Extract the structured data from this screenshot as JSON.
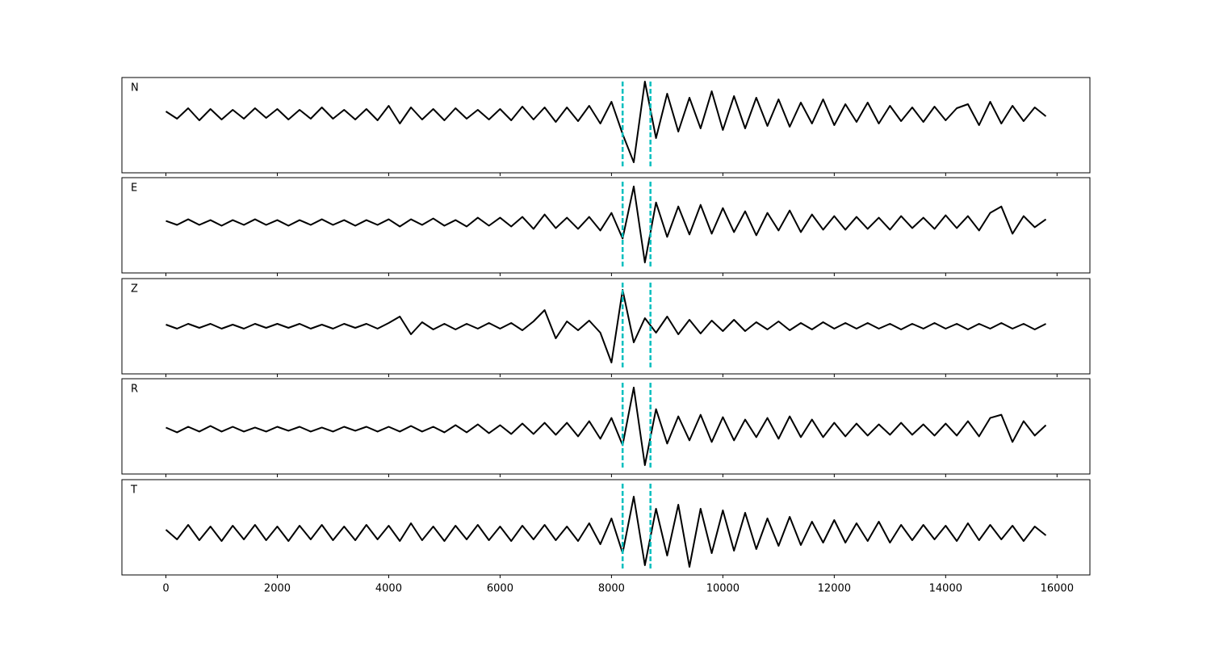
{
  "chart_data": [
    {
      "type": "line",
      "name": "N",
      "color": "#000000",
      "vline_color": "#00bfbf",
      "vlines": [
        8200,
        8700
      ],
      "x": [
        0,
        200,
        400,
        600,
        800,
        1000,
        1200,
        1400,
        1600,
        1800,
        2000,
        2200,
        2400,
        2600,
        2800,
        3000,
        3200,
        3400,
        3600,
        3800,
        4000,
        4200,
        4400,
        4600,
        4800,
        5000,
        5200,
        5400,
        5600,
        5800,
        6000,
        6200,
        6400,
        6600,
        6800,
        7000,
        7200,
        7400,
        7600,
        7800,
        8000,
        8200,
        8400,
        8600,
        8800,
        9000,
        9200,
        9400,
        9600,
        9800,
        10000,
        10200,
        10400,
        10600,
        10800,
        11000,
        11200,
        11400,
        11600,
        11800,
        12000,
        12200,
        12400,
        12600,
        12800,
        13000,
        13200,
        13400,
        13600,
        13800,
        14000,
        14200,
        14400,
        14600,
        14800,
        15000,
        15200,
        15400,
        15600,
        15800
      ],
      "values": [
        3,
        -6,
        7,
        -8,
        6,
        -7,
        5,
        -6,
        7,
        -5,
        6,
        -7,
        5,
        -6,
        8,
        -6,
        5,
        -7,
        6,
        -8,
        10,
        -12,
        8,
        -7,
        6,
        -8,
        7,
        -6,
        5,
        -7,
        6,
        -8,
        9,
        -7,
        8,
        -10,
        8,
        -9,
        10,
        -12,
        15,
        -25,
        -60,
        40,
        -30,
        25,
        -22,
        20,
        -18,
        28,
        -20,
        22,
        -18,
        20,
        -15,
        18,
        -16,
        14,
        -12,
        18,
        -14,
        12,
        -10,
        14,
        -12,
        10,
        -9,
        8,
        -10,
        9,
        -8,
        7,
        12,
        -14,
        15,
        -12,
        10,
        -9,
        8,
        -3
      ],
      "xlim": [
        -790,
        16590
      ],
      "ylim": [
        -73,
        45
      ],
      "xticks": [
        0,
        2000,
        4000,
        6000,
        8000,
        10000,
        12000,
        14000,
        16000
      ]
    },
    {
      "type": "line",
      "name": "E",
      "color": "#000000",
      "vline_color": "#00bfbf",
      "vlines": [
        8200,
        8700
      ],
      "x": [
        0,
        200,
        400,
        600,
        800,
        1000,
        1200,
        1400,
        1600,
        1800,
        2000,
        2200,
        2400,
        2600,
        2800,
        3000,
        3200,
        3400,
        3600,
        3800,
        4000,
        4200,
        4400,
        4600,
        4800,
        5000,
        5200,
        5400,
        5600,
        5800,
        6000,
        6200,
        6400,
        6600,
        6800,
        7000,
        7200,
        7400,
        7600,
        7800,
        8000,
        8200,
        8400,
        8600,
        8800,
        9000,
        9200,
        9400,
        9600,
        9800,
        10000,
        10200,
        10400,
        10600,
        10800,
        11000,
        11200,
        11400,
        11600,
        11800,
        12000,
        12200,
        12400,
        12600,
        12800,
        13000,
        13200,
        13400,
        13600,
        13800,
        14000,
        14200,
        14400,
        14600,
        14800,
        15000,
        15200,
        15400,
        15600,
        15800
      ],
      "values": [
        2,
        -3,
        4,
        -3,
        3,
        -4,
        3,
        -3,
        4,
        -3,
        3,
        -4,
        3,
        -3,
        4,
        -3,
        3,
        -4,
        3,
        -3,
        4,
        -5,
        4,
        -3,
        5,
        -4,
        3,
        -5,
        6,
        -4,
        6,
        -5,
        7,
        -8,
        10,
        -7,
        6,
        -8,
        7,
        -10,
        12,
        -20,
        45,
        -50,
        25,
        -18,
        20,
        -15,
        22,
        -14,
        18,
        -12,
        14,
        -16,
        12,
        -10,
        15,
        -12,
        10,
        -9,
        8,
        -9,
        7,
        -8,
        6,
        -9,
        8,
        -7,
        6,
        -8,
        9,
        -7,
        8,
        -10,
        12,
        20,
        -14,
        8,
        -6,
        4
      ],
      "xlim": [
        -790,
        16590
      ],
      "ylim": [
        -63,
        56
      ],
      "xticks": [
        0,
        2000,
        4000,
        6000,
        8000,
        10000,
        12000,
        14000,
        16000
      ]
    },
    {
      "type": "line",
      "name": "Z",
      "color": "#000000",
      "vline_color": "#00bfbf",
      "vlines": [
        8200,
        8700
      ],
      "x": [
        0,
        200,
        400,
        600,
        800,
        1000,
        1200,
        1400,
        1600,
        1800,
        2000,
        2200,
        2400,
        2600,
        2800,
        3000,
        3200,
        3400,
        3600,
        3800,
        4000,
        4200,
        4400,
        4600,
        4800,
        5000,
        5200,
        5400,
        5600,
        5800,
        6000,
        6200,
        6400,
        6600,
        6800,
        7000,
        7200,
        7400,
        7600,
        7800,
        8000,
        8200,
        8400,
        8600,
        8800,
        9000,
        9200,
        9400,
        9600,
        9800,
        10000,
        10200,
        10400,
        10600,
        10800,
        11000,
        11200,
        11400,
        11600,
        11800,
        12000,
        12200,
        12400,
        12600,
        12800,
        13000,
        13200,
        13400,
        13600,
        13800,
        14000,
        14200,
        14400,
        14600,
        14800,
        15000,
        15200,
        15400,
        15600,
        15800
      ],
      "values": [
        2,
        -3,
        3,
        -2,
        3,
        -3,
        2,
        -3,
        3,
        -2,
        3,
        -2,
        3,
        -3,
        2,
        -3,
        3,
        -2,
        3,
        -3,
        4,
        12,
        -10,
        5,
        -4,
        3,
        -4,
        3,
        -3,
        4,
        -3,
        4,
        -5,
        6,
        20,
        -15,
        6,
        -5,
        7,
        -8,
        -45,
        45,
        -20,
        10,
        -8,
        12,
        -10,
        8,
        -9,
        7,
        -6,
        8,
        -6,
        5,
        -4,
        6,
        -5,
        4,
        -4,
        5,
        -3,
        4,
        -3,
        4,
        -3,
        3,
        -4,
        3,
        -3,
        4,
        -3,
        3,
        -4,
        3,
        -3,
        4,
        -3,
        3,
        -4,
        3
      ],
      "xlim": [
        -790,
        16590
      ],
      "ylim": [
        -59,
        59
      ],
      "xticks": [
        0,
        2000,
        4000,
        6000,
        8000,
        10000,
        12000,
        14000,
        16000
      ]
    },
    {
      "type": "line",
      "name": "R",
      "color": "#000000",
      "vline_color": "#00bfbf",
      "vlines": [
        8200,
        8700
      ],
      "x": [
        0,
        200,
        400,
        600,
        800,
        1000,
        1200,
        1400,
        1600,
        1800,
        2000,
        2200,
        2400,
        2600,
        2800,
        3000,
        3200,
        3400,
        3600,
        3800,
        4000,
        4200,
        4400,
        4600,
        4800,
        5000,
        5200,
        5400,
        5600,
        5800,
        6000,
        6200,
        6400,
        6600,
        6800,
        7000,
        7200,
        7400,
        7600,
        7800,
        8000,
        8200,
        8400,
        8600,
        8800,
        9000,
        9200,
        9400,
        9600,
        9800,
        10000,
        10200,
        10400,
        10600,
        10800,
        11000,
        11200,
        11400,
        11600,
        11800,
        12000,
        12200,
        12400,
        12600,
        12800,
        13000,
        13200,
        13400,
        13600,
        13800,
        14000,
        14200,
        14400,
        14600,
        14800,
        15000,
        15200,
        15400,
        15600,
        15800
      ],
      "values": [
        2,
        -4,
        3,
        -3,
        4,
        -3,
        3,
        -3,
        2,
        -3,
        3,
        -2,
        3,
        -3,
        2,
        -3,
        3,
        -2,
        3,
        -3,
        3,
        -3,
        4,
        -3,
        3,
        -4,
        5,
        -4,
        6,
        -5,
        5,
        -6,
        7,
        -6,
        8,
        -7,
        8,
        -9,
        10,
        -12,
        14,
        -20,
        52,
        -45,
        25,
        -18,
        16,
        -14,
        18,
        -16,
        15,
        -14,
        12,
        -10,
        14,
        -12,
        16,
        -10,
        12,
        -10,
        8,
        -9,
        7,
        -8,
        6,
        -7,
        8,
        -7,
        6,
        -8,
        7,
        -8,
        10,
        -9,
        14,
        18,
        -16,
        10,
        -8,
        5
      ],
      "xlim": [
        -790,
        16590
      ],
      "ylim": [
        -56,
        63
      ],
      "xticks": [
        0,
        2000,
        4000,
        6000,
        8000,
        10000,
        12000,
        14000,
        16000
      ]
    },
    {
      "type": "line",
      "name": "T",
      "color": "#000000",
      "vline_color": "#00bfbf",
      "vlines": [
        8200,
        8700
      ],
      "x": [
        0,
        200,
        400,
        600,
        800,
        1000,
        1200,
        1400,
        1600,
        1800,
        2000,
        2200,
        2400,
        2600,
        2800,
        3000,
        3200,
        3400,
        3600,
        3800,
        4000,
        4200,
        4400,
        4600,
        4800,
        5000,
        5200,
        5400,
        5600,
        5800,
        6000,
        6200,
        6400,
        6600,
        6800,
        7000,
        7200,
        7400,
        7600,
        7800,
        8000,
        8200,
        8400,
        8600,
        8800,
        9000,
        9200,
        9400,
        9600,
        9800,
        10000,
        10200,
        10400,
        10600,
        10800,
        11000,
        11200,
        11400,
        11600,
        11800,
        12000,
        12200,
        12400,
        12600,
        12800,
        13000,
        13200,
        13400,
        13600,
        13800,
        14000,
        14200,
        14400,
        14600,
        14800,
        15000,
        15200,
        15400,
        15600,
        15800
      ],
      "values": [
        4,
        -8,
        10,
        -9,
        8,
        -10,
        9,
        -8,
        10,
        -9,
        8,
        -10,
        9,
        -8,
        10,
        -9,
        8,
        -9,
        10,
        -8,
        9,
        -10,
        12,
        -9,
        8,
        -10,
        9,
        -8,
        10,
        -9,
        8,
        -10,
        9,
        -8,
        10,
        -9,
        8,
        -10,
        12,
        -14,
        18,
        -25,
        45,
        -40,
        30,
        -28,
        35,
        -42,
        30,
        -25,
        28,
        -22,
        25,
        -20,
        18,
        -16,
        20,
        -15,
        14,
        -12,
        16,
        -12,
        12,
        -10,
        14,
        -12,
        10,
        -9,
        10,
        -8,
        9,
        -10,
        12,
        -9,
        10,
        -8,
        9,
        -10,
        8,
        -3
      ],
      "xlim": [
        -790,
        16590
      ],
      "ylim": [
        -52,
        66
      ],
      "xticks": [
        0,
        2000,
        4000,
        6000,
        8000,
        10000,
        12000,
        14000,
        16000
      ]
    }
  ]
}
